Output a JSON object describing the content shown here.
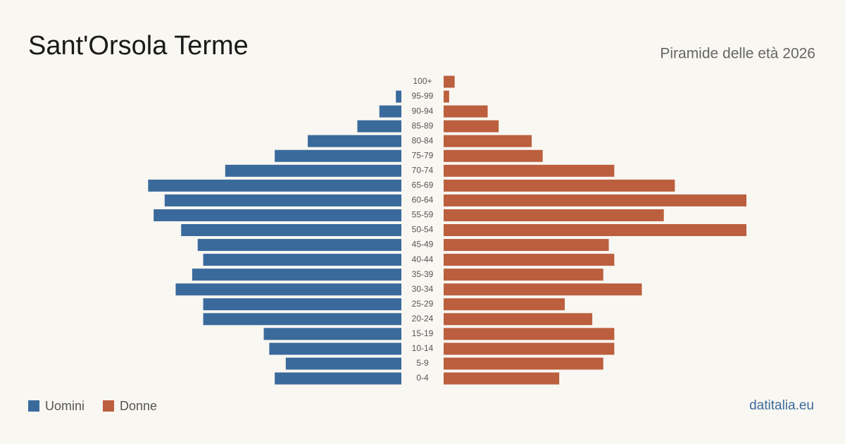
{
  "chart_data": {
    "type": "pyramid",
    "title": "Sant'Orsola Terme",
    "subtitle": "Piramide delle età 2026",
    "source": "datitalia.eu",
    "categories": [
      "0-4",
      "5-9",
      "10-14",
      "15-19",
      "20-24",
      "25-29",
      "30-34",
      "35-39",
      "40-44",
      "45-49",
      "50-54",
      "55-59",
      "60-64",
      "65-69",
      "70-74",
      "75-79",
      "80-84",
      "85-89",
      "90-94",
      "95-99",
      "100+"
    ],
    "series": [
      {
        "name": "Uomini",
        "color": "#3a6a9c",
        "values": [
          23,
          21,
          24,
          25,
          36,
          36,
          41,
          38,
          36,
          37,
          40,
          45,
          43,
          46,
          32,
          23,
          17,
          8,
          4,
          1,
          0
        ]
      },
      {
        "name": "Donne",
        "color": "#bb5f3e",
        "values": [
          21,
          29,
          31,
          31,
          27,
          22,
          36,
          29,
          31,
          30,
          55,
          40,
          55,
          42,
          31,
          18,
          16,
          10,
          8,
          1,
          2
        ]
      }
    ]
  }
}
